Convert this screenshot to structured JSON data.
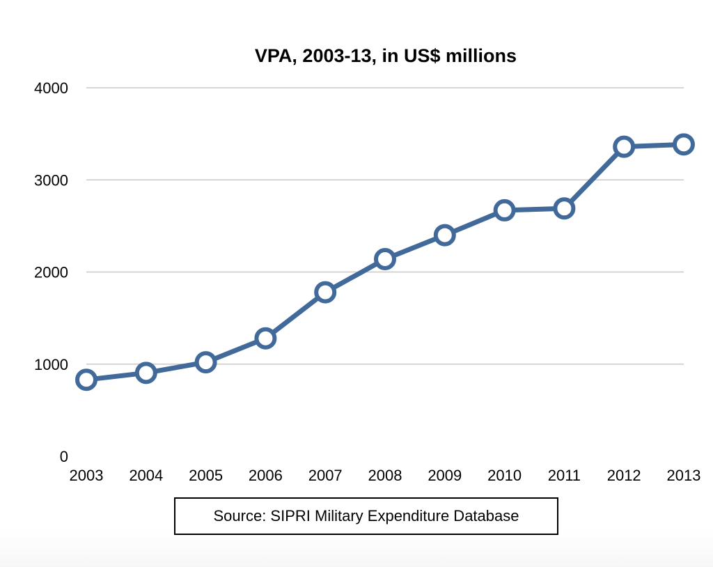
{
  "chart_data": {
    "type": "line",
    "title": "VPA, 2003-13, in US$ millions",
    "xlabel": "",
    "ylabel": "",
    "categories": [
      "2003",
      "2004",
      "2005",
      "2006",
      "2007",
      "2008",
      "2009",
      "2010",
      "2011",
      "2012",
      "2013"
    ],
    "series": [
      {
        "values": [
          830,
          905,
          1020,
          1280,
          1780,
          2140,
          2400,
          2670,
          2690,
          3360,
          3385
        ],
        "color": "#41699a"
      }
    ],
    "ylim": [
      0,
      4000
    ],
    "yticks": [
      "0",
      "1000",
      "2000",
      "3000",
      "4000"
    ],
    "grid": true,
    "legend": "none",
    "marker": "hollow-circle",
    "source": "Source: SIPRI Military Expenditure Database"
  }
}
